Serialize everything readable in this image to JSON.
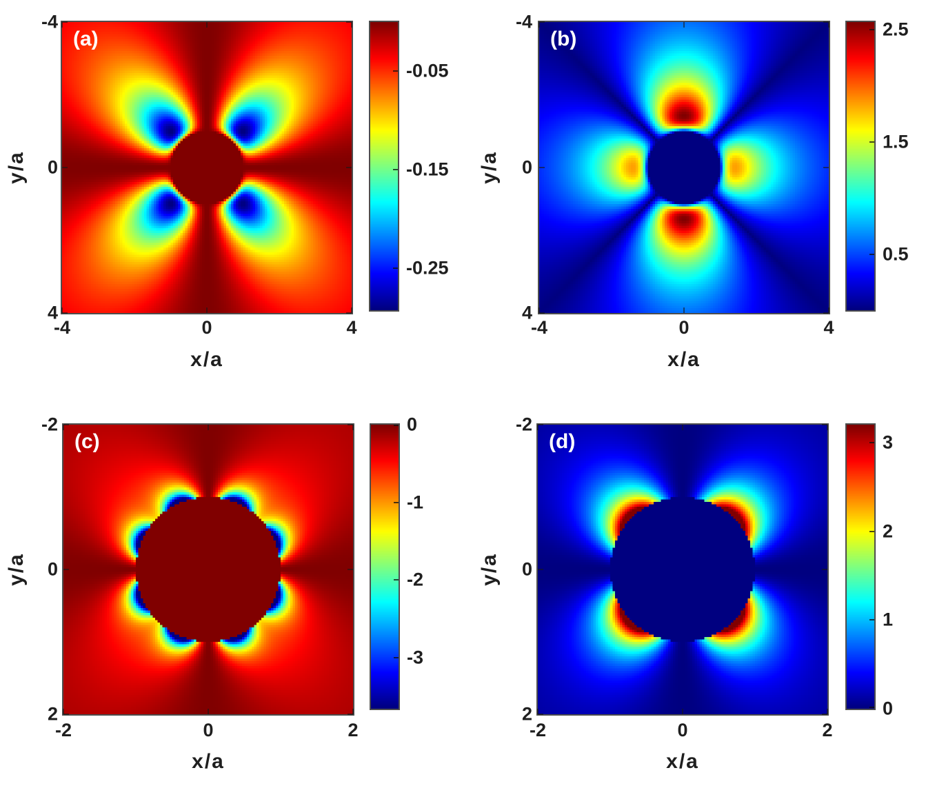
{
  "figure": {
    "background": "#ffffff",
    "kind": "2x2 grid of pseudocolor field maps around a cylinder",
    "colors": {
      "text": "#1f1f1f",
      "frame": "#4d4d4d",
      "panel_letter": "#ffffff",
      "colormap_min": "#00007f",
      "colormap_max": "#7f0000"
    }
  },
  "chart_data": {
    "type": "heatmap",
    "colormap": "jet",
    "grid": false,
    "panels": [
      {
        "label": "(a)",
        "xlabel": "x/a",
        "ylabel": "y/a",
        "xlim": [
          -4,
          4
        ],
        "ylim": [
          -4,
          4
        ],
        "y_axis_reversed": true,
        "xticks": [
          "-4",
          "0",
          "4"
        ],
        "yticks": [
          "-4",
          "0",
          "4"
        ],
        "xtick_values": [
          -4,
          0,
          4
        ],
        "ytick_values": [
          -4,
          0,
          4
        ],
        "clim": [
          -0.293,
          0
        ],
        "colorbar": {
          "ticks": [
            {
              "value": -0.05,
              "label": "-0.05"
            },
            {
              "value": -0.15,
              "label": "-0.15"
            },
            {
              "value": -0.25,
              "label": "-0.25"
            }
          ]
        },
        "masked_disk": {
          "radius": 1,
          "value": 0
        },
        "pattern": "background ~0 (dark red); four negative lobes (min ~ -0.29) on the diagonals around a saturated disk of radius a; nulls along both axes",
        "field_terms": [
          {
            "amp": -1.172,
            "pow": 2,
            "ang": "sin2sq"
          },
          {
            "amp": 1.172,
            "pow": 4,
            "ang": "sin2sq"
          }
        ],
        "grid_n": 120
      },
      {
        "label": "(b)",
        "xlabel": "x/a",
        "ylabel": "y/a",
        "xlim": [
          -4,
          4
        ],
        "ylim": [
          -4,
          4
        ],
        "y_axis_reversed": true,
        "xticks": [
          "-4",
          "0",
          "4"
        ],
        "yticks": [
          "-4",
          "0",
          "4"
        ],
        "xtick_values": [
          -4,
          0,
          4
        ],
        "ytick_values": [
          -4,
          0,
          4
        ],
        "clim": [
          0,
          2.57
        ],
        "colorbar": {
          "ticks": [
            {
              "value": 2.5,
              "label": "2.5"
            },
            {
              "value": 1.5,
              "label": "1.5"
            },
            {
              "value": 0.5,
              "label": "0.5"
            }
          ]
        },
        "masked_disk": {
          "radius": 1,
          "value": 0
        },
        "pattern": "background ~0 (dark blue); strong lobes (~2.5) above and below the disk on the y-axis, weaker lobes (~1.8) left and right on the x-axis; nulls along the diagonals",
        "field_terms": [
          {
            "amp": 10.28,
            "pow": 2,
            "ang": "cos2neg"
          },
          {
            "amp": -10.28,
            "pow": 4,
            "ang": "cos2neg"
          },
          {
            "amp": 7.4,
            "pow": 2,
            "ang": "cos2pos"
          },
          {
            "amp": -7.4,
            "pow": 4,
            "ang": "cos2pos"
          }
        ],
        "grid_n": 120
      },
      {
        "label": "(c)",
        "xlabel": "x/a",
        "ylabel": "y/a",
        "xlim": [
          -2,
          2
        ],
        "ylim": [
          -2,
          2
        ],
        "y_axis_reversed": true,
        "xticks": [
          "-2",
          "0",
          "2"
        ],
        "yticks": [
          "-2",
          "0",
          "2"
        ],
        "xtick_values": [
          -2,
          0,
          2
        ],
        "ytick_values": [
          -2,
          0,
          2
        ],
        "clim": [
          -3.66,
          0
        ],
        "colorbar": {
          "ticks": [
            {
              "value": 0,
              "label": "0"
            },
            {
              "value": -1,
              "label": "-1"
            },
            {
              "value": -2,
              "label": "-2"
            },
            {
              "value": -3,
              "label": "-3"
            }
          ]
        },
        "masked_disk": {
          "radius": 1,
          "value": 0
        },
        "pattern": "background ~0 (dark red); eight deep negative lobes (~ -3.5) hugging the disk of radius a, fainter red lobes on the diagonals farther out; nulls along both axes",
        "field_terms": [
          {
            "amp": -1.3,
            "pow": 2,
            "ang": "sin2sq"
          },
          {
            "amp": -4.6,
            "pow": 8,
            "ang": "sin4sq"
          }
        ],
        "grid_n": 120
      },
      {
        "label": "(d)",
        "xlabel": "x/a",
        "ylabel": "y/a",
        "xlim": [
          -2,
          2
        ],
        "ylim": [
          -2,
          2
        ],
        "y_axis_reversed": true,
        "xticks": [
          "-2",
          "0",
          "2"
        ],
        "yticks": [
          "-2",
          "0",
          "2"
        ],
        "xtick_values": [
          -2,
          0,
          2
        ],
        "ytick_values": [
          -2,
          0,
          2
        ],
        "clim": [
          0,
          3.2
        ],
        "colorbar": {
          "ticks": [
            {
              "value": 3,
              "label": "3"
            },
            {
              "value": 2,
              "label": "2"
            },
            {
              "value": 1,
              "label": "1"
            },
            {
              "value": 0,
              "label": "0"
            }
          ]
        },
        "masked_disk": {
          "radius": 1,
          "value": 0
        },
        "pattern": "background ~0 (dark blue); four positive lobes (~3) hugging the disk of radius a along the diagonals; nulls along both axes",
        "field_terms": [
          {
            "amp": 4.2,
            "pow": 3.5,
            "ang": "sin2sq"
          }
        ],
        "grid_n": 120
      }
    ]
  }
}
